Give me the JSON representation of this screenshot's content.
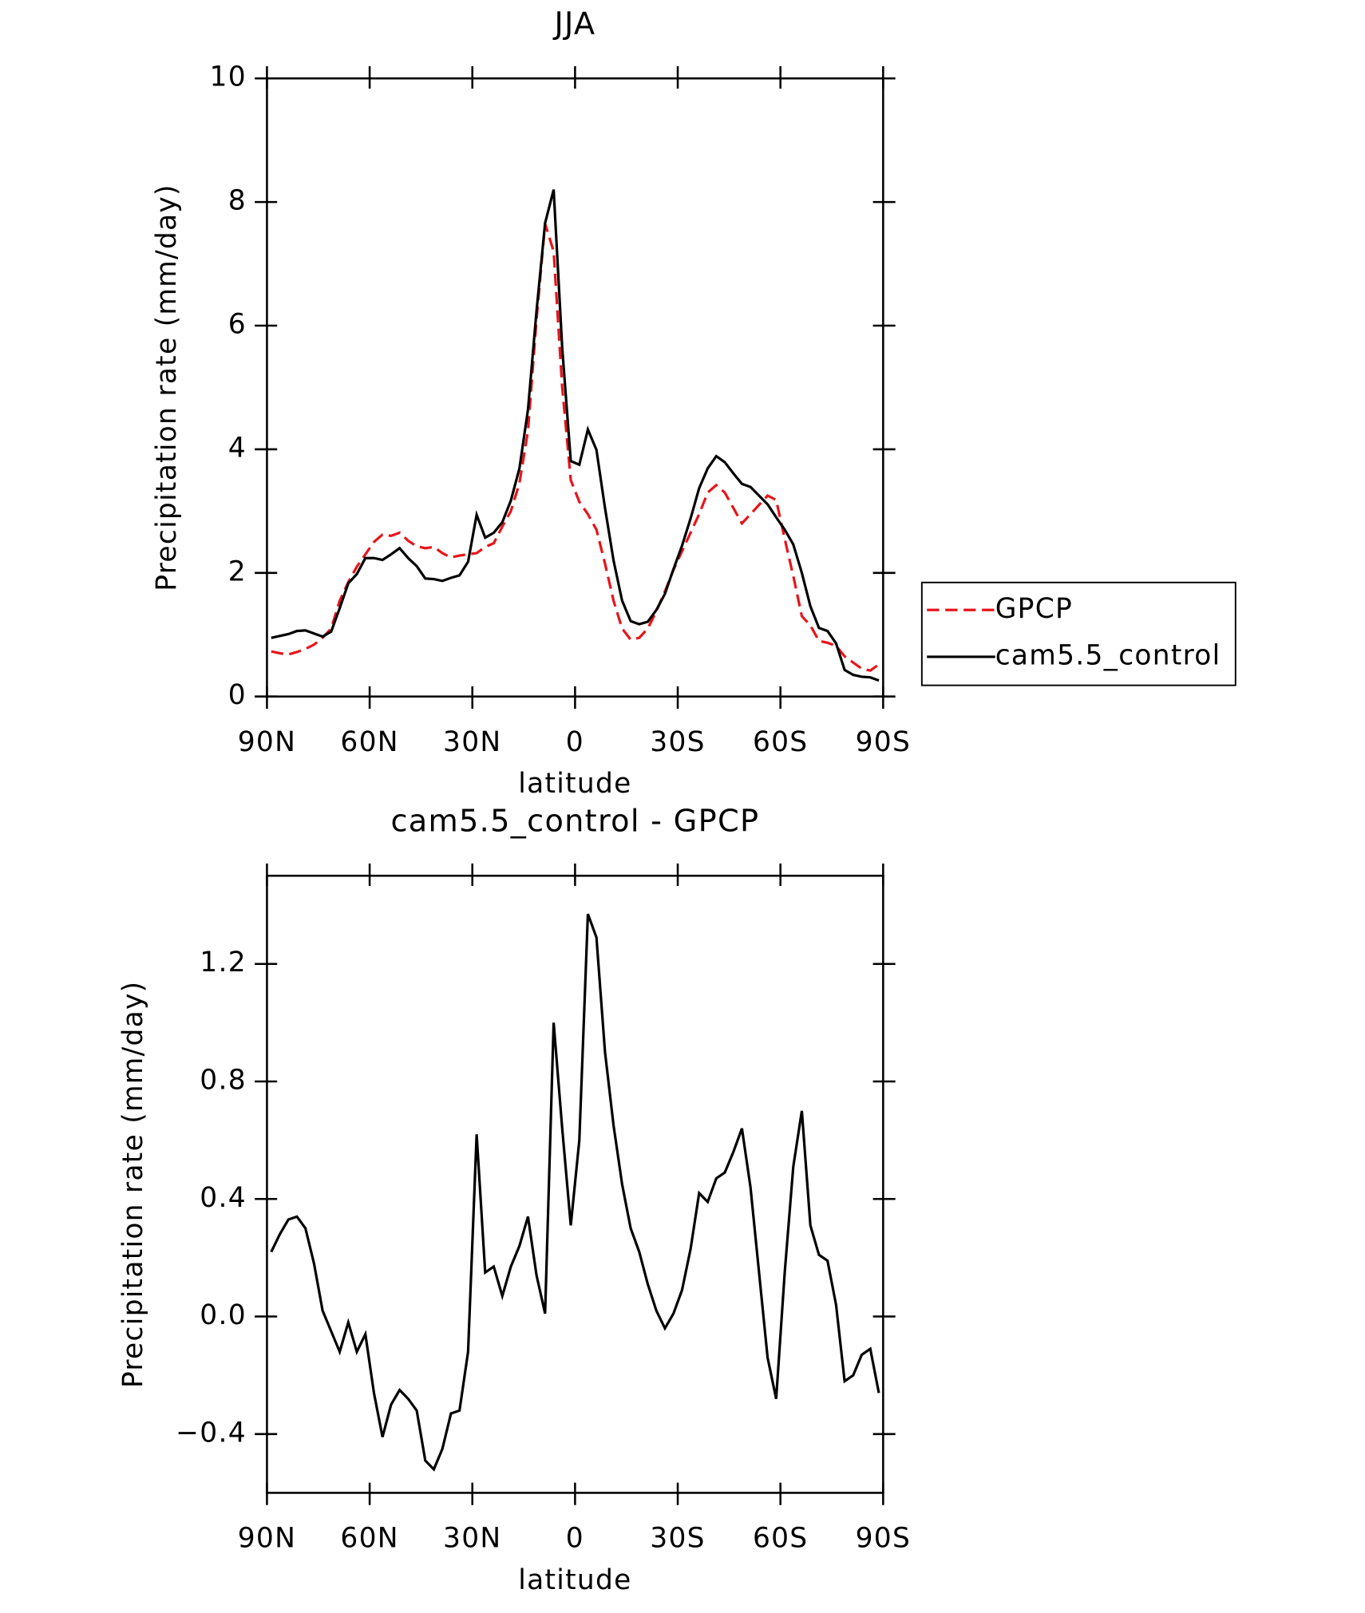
{
  "chart_data": [
    {
      "type": "line",
      "title": "JJA",
      "xlabel": "latitude",
      "ylabel": "Precipitation rate (mm/day)",
      "x": [
        88.75,
        86.25,
        83.75,
        81.25,
        78.75,
        76.25,
        73.75,
        71.25,
        68.75,
        66.25,
        63.75,
        61.25,
        58.75,
        56.25,
        53.75,
        51.25,
        48.75,
        46.25,
        43.75,
        41.25,
        38.75,
        36.25,
        33.75,
        31.25,
        28.75,
        26.25,
        23.75,
        21.25,
        18.75,
        16.25,
        13.75,
        11.25,
        8.75,
        6.25,
        3.75,
        1.25,
        -1.25,
        -3.75,
        -6.25,
        -8.75,
        -11.25,
        -13.75,
        -16.25,
        -18.75,
        -21.25,
        -23.75,
        -26.25,
        -28.75,
        -31.25,
        -33.75,
        -36.25,
        -38.75,
        -41.25,
        -43.75,
        -46.25,
        -48.75,
        -51.25,
        -53.75,
        -56.25,
        -58.75,
        -61.25,
        -63.75,
        -66.25,
        -68.75,
        -71.25,
        -73.75,
        -76.25,
        -78.75,
        -81.25,
        -83.75,
        -86.25,
        -88.75
      ],
      "series": [
        {
          "name": "GPCP",
          "color": "#e8141a",
          "dashed": true,
          "values": [
            0.73,
            0.7,
            0.68,
            0.72,
            0.77,
            0.84,
            0.95,
            1.1,
            1.55,
            1.85,
            2.1,
            2.3,
            2.5,
            2.62,
            2.6,
            2.65,
            2.52,
            2.43,
            2.4,
            2.42,
            2.32,
            2.25,
            2.28,
            2.3,
            2.32,
            2.42,
            2.48,
            2.75,
            3.0,
            3.45,
            4.3,
            6.1,
            7.65,
            7.2,
            5.0,
            3.5,
            3.15,
            2.95,
            2.7,
            2.15,
            1.55,
            1.1,
            0.92,
            0.95,
            1.1,
            1.38,
            1.7,
            2.05,
            2.35,
            2.65,
            2.95,
            3.3,
            3.42,
            3.3,
            3.05,
            2.8,
            2.95,
            3.1,
            3.25,
            3.18,
            2.55,
            1.95,
            1.3,
            1.15,
            0.9,
            0.87,
            0.82,
            0.65,
            0.55,
            0.45,
            0.42,
            0.52
          ]
        },
        {
          "name": "cam5.5_control",
          "color": "#000000",
          "dashed": false,
          "values": [
            0.95,
            0.98,
            1.01,
            1.06,
            1.07,
            1.02,
            0.97,
            1.05,
            1.43,
            1.83,
            1.98,
            2.24,
            2.24,
            2.21,
            2.3,
            2.4,
            2.24,
            2.11,
            1.91,
            1.9,
            1.87,
            1.92,
            1.96,
            2.18,
            2.94,
            2.57,
            2.65,
            2.82,
            3.17,
            3.69,
            4.64,
            6.24,
            7.66,
            8.2,
            5.64,
            3.81,
            3.75,
            4.32,
            3.99,
            3.05,
            2.2,
            1.55,
            1.22,
            1.17,
            1.21,
            1.4,
            1.66,
            2.06,
            2.44,
            2.88,
            3.37,
            3.69,
            3.89,
            3.79,
            3.61,
            3.44,
            3.39,
            3.25,
            3.11,
            2.9,
            2.7,
            2.46,
            2.0,
            1.46,
            1.11,
            1.06,
            0.86,
            0.43,
            0.35,
            0.32,
            0.31,
            0.26
          ]
        }
      ],
      "xlim": [
        90,
        -90
      ],
      "xticks": [
        {
          "value": 90,
          "label": "90N"
        },
        {
          "value": 60,
          "label": "60N"
        },
        {
          "value": 30,
          "label": "30N"
        },
        0,
        {
          "value": -30,
          "label": "30S"
        },
        {
          "value": -60,
          "label": "60S"
        },
        {
          "value": -90,
          "label": "90S"
        }
      ],
      "ylim": [
        0,
        10
      ],
      "yticks": [
        0,
        2,
        4,
        6,
        8,
        10
      ],
      "legend": "right"
    },
    {
      "type": "line",
      "title": "cam5.5_control - GPCP",
      "xlabel": "latitude",
      "ylabel": "Precipitation rate (mm/day)",
      "x": [
        88.75,
        86.25,
        83.75,
        81.25,
        78.75,
        76.25,
        73.75,
        71.25,
        68.75,
        66.25,
        63.75,
        61.25,
        58.75,
        56.25,
        53.75,
        51.25,
        48.75,
        46.25,
        43.75,
        41.25,
        38.75,
        36.25,
        33.75,
        31.25,
        28.75,
        26.25,
        23.75,
        21.25,
        18.75,
        16.25,
        13.75,
        11.25,
        8.75,
        6.25,
        3.75,
        1.25,
        -1.25,
        -3.75,
        -6.25,
        -8.75,
        -11.25,
        -13.75,
        -16.25,
        -18.75,
        -21.25,
        -23.75,
        -26.25,
        -28.75,
        -31.25,
        -33.75,
        -36.25,
        -38.75,
        -41.25,
        -43.75,
        -46.25,
        -48.75,
        -51.25,
        -53.75,
        -56.25,
        -58.75,
        -61.25,
        -63.75,
        -66.25,
        -68.75,
        -71.25,
        -73.75,
        -76.25,
        -78.75,
        -81.25,
        -83.75,
        -86.25,
        -88.75
      ],
      "series": [
        {
          "color": "#000000",
          "dashed": false,
          "values": [
            0.22,
            0.28,
            0.33,
            0.34,
            0.3,
            0.18,
            0.02,
            -0.05,
            -0.12,
            -0.02,
            -0.12,
            -0.06,
            -0.26,
            -0.41,
            -0.3,
            -0.25,
            -0.28,
            -0.32,
            -0.49,
            -0.52,
            -0.45,
            -0.33,
            -0.32,
            -0.12,
            0.62,
            0.15,
            0.17,
            0.07,
            0.17,
            0.24,
            0.34,
            0.14,
            0.01,
            1.0,
            0.64,
            0.31,
            0.6,
            1.37,
            1.29,
            0.9,
            0.65,
            0.45,
            0.3,
            0.22,
            0.11,
            0.02,
            -0.04,
            0.01,
            0.09,
            0.23,
            0.42,
            0.39,
            0.47,
            0.49,
            0.56,
            0.64,
            0.44,
            0.15,
            -0.14,
            -0.28,
            0.15,
            0.51,
            0.7,
            0.31,
            0.21,
            0.19,
            0.04,
            -0.22,
            -0.2,
            -0.13,
            -0.11,
            -0.26
          ]
        }
      ],
      "xlim": [
        90,
        -90
      ],
      "xticks": [
        {
          "value": 90,
          "label": "90N"
        },
        {
          "value": 60,
          "label": "60N"
        },
        {
          "value": 30,
          "label": "30N"
        },
        0,
        {
          "value": -30,
          "label": "30S"
        },
        {
          "value": -60,
          "label": "60S"
        },
        {
          "value": -90,
          "label": "90S"
        }
      ],
      "ylim": [
        -0.6,
        1.5
      ],
      "yticks": [
        {
          "value": -0.4,
          "label": "−0.4"
        },
        {
          "value": 0,
          "label": "0.0"
        },
        0.4,
        0.8,
        1.2
      ]
    }
  ]
}
